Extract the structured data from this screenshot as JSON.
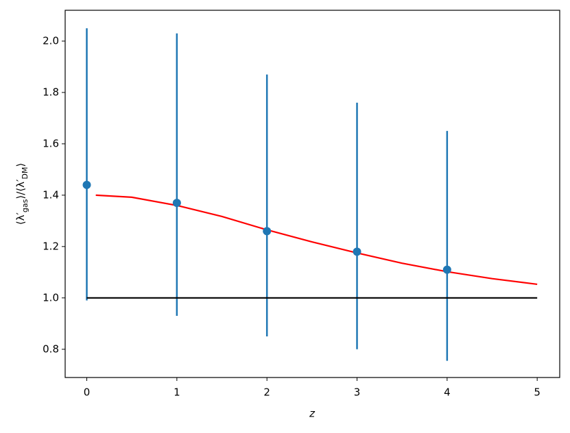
{
  "chart_data": {
    "type": "errorbar",
    "xlabel": "z",
    "ylabel": [
      "⟨λ′",
      "gas",
      "⟩/⟨λ′",
      "DM",
      "⟩"
    ],
    "xlim": [
      -0.24,
      5.25
    ],
    "ylim": [
      0.69,
      2.12
    ],
    "xticks": [
      0,
      1,
      2,
      3,
      4,
      5
    ],
    "yticks": [
      0.8,
      {
        "value": 1,
        "label": "1.0"
      },
      1.2,
      1.4,
      1.6,
      1.8,
      {
        "value": 2,
        "label": "2.0"
      }
    ],
    "points": {
      "x": [
        0,
        1,
        2,
        3,
        4
      ],
      "values": [
        1.44,
        1.37,
        1.26,
        1.18,
        1.11
      ],
      "err_minus": [
        0.45,
        0.44,
        0.41,
        0.38,
        0.355
      ],
      "err_plus": [
        0.61,
        0.66,
        0.61,
        0.58,
        0.54
      ],
      "color": "#1f77b4"
    },
    "fit": {
      "x": [
        0.1,
        0.5,
        1,
        1.5,
        2,
        2.5,
        3,
        3.5,
        4,
        4.5,
        5
      ],
      "values": [
        1.4,
        1.392,
        1.36,
        1.317,
        1.265,
        1.218,
        1.175,
        1.135,
        1.102,
        1.075,
        1.053
      ],
      "color": "#ff0000"
    },
    "baseline": {
      "x": [
        0,
        5
      ],
      "values": [
        1,
        1
      ],
      "color": "#000000"
    }
  }
}
